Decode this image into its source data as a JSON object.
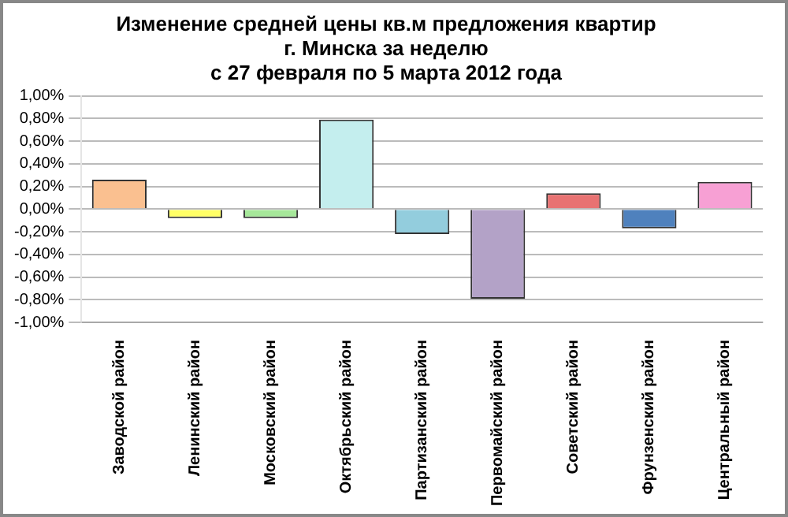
{
  "chart_data": {
    "type": "bar",
    "title": [
      "Изменение средней цены кв.м предложения квартир",
      "г. Минска за неделю",
      "с 27 февраля по 5 марта 2012 года"
    ],
    "categories": [
      "Заводской район",
      "Ленинский район",
      "Московский район",
      "Октябрьский район",
      "Партизанский район",
      "Первомайский район",
      "Советский район",
      "Фрунзенский район",
      "Центральный район"
    ],
    "values": [
      0.26,
      -0.08,
      -0.08,
      0.79,
      -0.22,
      -0.79,
      0.14,
      -0.17,
      0.24
    ],
    "colors": [
      "#fac090",
      "#ffff66",
      "#a6e89a",
      "#c4eeee",
      "#93cddd",
      "#b3a2c7",
      "#e87272",
      "#4f81bd",
      "#f7a0d4"
    ],
    "ylim": [
      -1,
      1
    ],
    "yticks": [
      {
        "value": -1,
        "label": "-1,00%"
      },
      {
        "value": -0.8,
        "label": "-0,80%"
      },
      {
        "value": -0.6,
        "label": "-0,60%"
      },
      {
        "value": -0.4,
        "label": "-0,40%"
      },
      {
        "value": -0.2,
        "label": "-0,20%"
      },
      {
        "value": 0,
        "label": "0,00%"
      },
      {
        "value": 0.2,
        "label": "0,20%"
      },
      {
        "value": 0.4,
        "label": "0,40%"
      },
      {
        "value": 0.6,
        "label": "0,60%"
      },
      {
        "value": 0.8,
        "label": "0,80%"
      },
      {
        "value": 1,
        "label": "1,00%"
      }
    ],
    "grid": "y",
    "legend": false
  }
}
